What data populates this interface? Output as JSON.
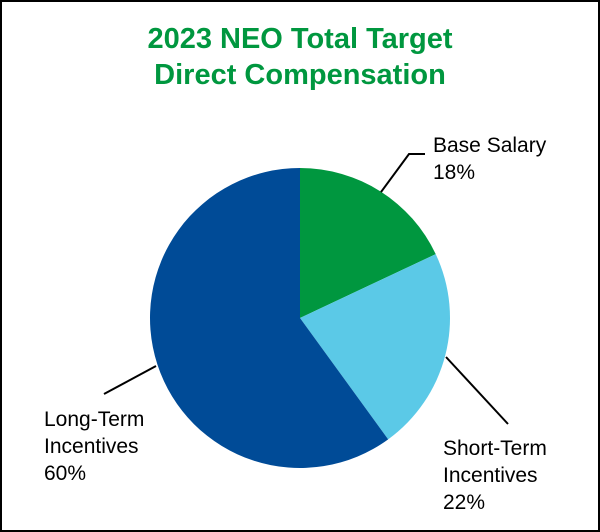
{
  "chart_data": {
    "type": "pie",
    "title": [
      "2023 NEO Total Target",
      "Direct Compensation"
    ],
    "slices": [
      {
        "label": [
          "Base Salary"
        ],
        "value": 18,
        "value_label": "18%",
        "color": "#00973F"
      },
      {
        "label": [
          "Short-Term",
          "Incentives"
        ],
        "value": 22,
        "value_label": "22%",
        "color": "#5BC9E7"
      },
      {
        "label": [
          "Long-Term",
          "Incentives"
        ],
        "value": 60,
        "value_label": "60%",
        "color": "#004B97"
      }
    ],
    "title_color": "#00973F",
    "start": "top",
    "direction": "clockwise"
  }
}
